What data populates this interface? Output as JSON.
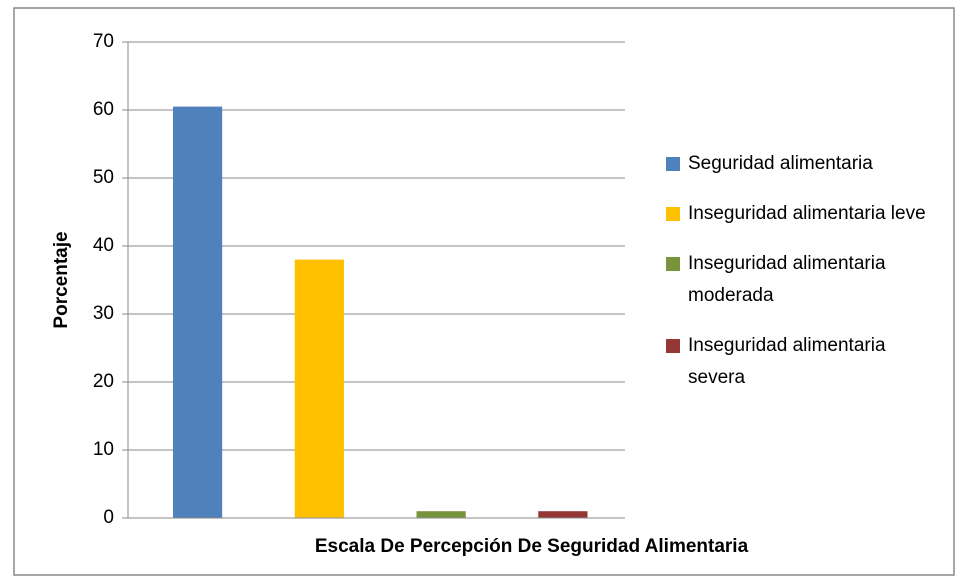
{
  "chart_data": {
    "type": "bar",
    "categories": [
      "Escala De Percepción De Seguridad Alimentaria"
    ],
    "series": [
      {
        "name": "Seguridad alimentaria",
        "color": "#4f81bd",
        "values": [
          60.5
        ]
      },
      {
        "name": "Inseguridad alimentaria leve",
        "color": "#ffc000",
        "values": [
          38
        ]
      },
      {
        "name": "Inseguridad alimentaria moderada",
        "color": "#77933c",
        "values": [
          1
        ]
      },
      {
        "name": "Inseguridad alimentaria severa",
        "color": "#953735",
        "values": [
          1
        ]
      }
    ],
    "ylabel": "Porcentaje",
    "ylim": [
      0,
      70
    ],
    "yticks": [
      0,
      10,
      20,
      30,
      40,
      50,
      60,
      70
    ],
    "grid": true,
    "legend": "right"
  }
}
